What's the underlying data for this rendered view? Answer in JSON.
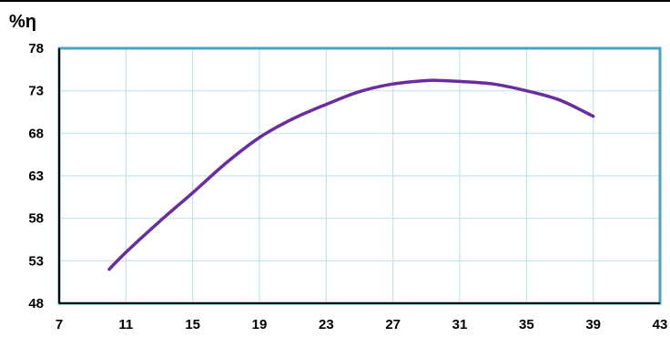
{
  "chart_data": {
    "type": "line",
    "title": "",
    "xlabel": "",
    "ylabel": "%η",
    "xlim": [
      7,
      43
    ],
    "ylim": [
      48,
      78
    ],
    "x_ticks": [
      "7",
      "11",
      "15",
      "19",
      "23",
      "27",
      "31",
      "35",
      "39",
      "43"
    ],
    "y_ticks": [
      "48",
      "53",
      "58",
      "63",
      "68",
      "73",
      "78"
    ],
    "grid": true,
    "series": [
      {
        "x": [
          10,
          11,
          13,
          15,
          17,
          19,
          21,
          23,
          25,
          27,
          29,
          30,
          31,
          33,
          35,
          37,
          39
        ],
        "y": [
          52,
          54,
          57.6,
          61,
          64.5,
          67.5,
          69.7,
          71.4,
          72.9,
          73.8,
          74.2,
          74.2,
          74.1,
          73.8,
          73.0,
          71.9,
          70.0
        ]
      }
    ],
    "colors": {
      "line": "#6a2d9e",
      "grid": "#c5e1ea",
      "frame": "#4aa3bf",
      "axis": "#000000"
    }
  }
}
